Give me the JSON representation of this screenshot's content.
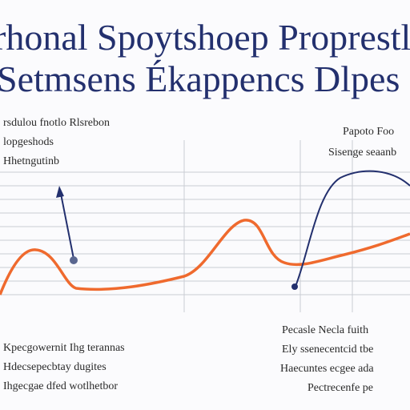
{
  "title": {
    "lines": [
      "rhonal Spoytshoep Proprestl",
      "Setmsens Ékappencs Dlpes"
    ]
  },
  "annotations": [
    {
      "lines": [
        "rsdulou fnotlo Rlsrebon",
        "lopgeshods",
        "Hhetngutinb"
      ]
    },
    {
      "lines": [
        "Papoto Foo",
        "Sisenge seaanb"
      ]
    },
    {
      "lines": [
        "Kpecgowernit Ihg terannas",
        "Hdecsepecbtay dugites",
        "Ihgecgae dfed wotlhetbor"
      ]
    },
    {
      "lines": [
        "Pecasle Necla fuith",
        "Ely ssenecentcid tbe",
        "Haecuntes ecgee ada",
        "Pectrecenfe pe"
      ]
    }
  ]
}
